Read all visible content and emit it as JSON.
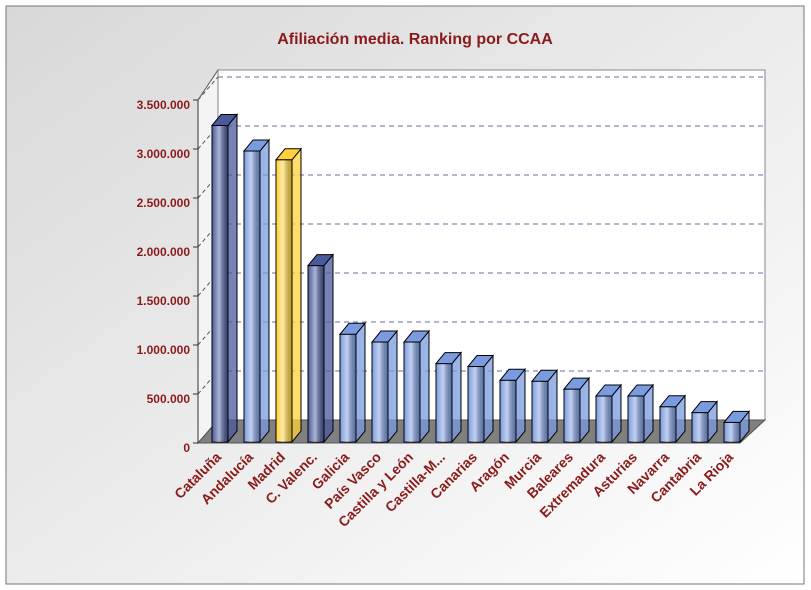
{
  "chart_data": {
    "type": "bar3d",
    "title": "Afiliación media. Ranking por CCAA",
    "categories": [
      "Cataluña",
      "Andalucía",
      "Madrid",
      "C. Valenc.",
      "Galicia",
      "País Vasco",
      "Castilla y León",
      "Castilla-M...",
      "Canarias",
      "Aragón",
      "Murcia",
      "Baleares",
      "Extremadura",
      "Asturias",
      "Navarra",
      "Cantabria",
      "La Rioja"
    ],
    "values": [
      3230000,
      2970000,
      2880000,
      1800000,
      1100000,
      1020000,
      1020000,
      800000,
      770000,
      630000,
      620000,
      540000,
      470000,
      470000,
      360000,
      300000,
      200000
    ],
    "colors": [
      "#4a5a9c",
      "#7a9be0",
      "#ffd23a",
      "#4a5a9c",
      "#7a9be0",
      "#7a9be0",
      "#7a9be0",
      "#7a9be0",
      "#7a9be0",
      "#7a9be0",
      "#7a9be0",
      "#7a9be0",
      "#7a9be0",
      "#7a9be0",
      "#7a9be0",
      "#7a9be0",
      "#7a9be0"
    ],
    "ylim": [
      0,
      3500000
    ],
    "yticks": [
      {
        "value": 0,
        "label": "0"
      },
      {
        "value": 500000,
        "label": "500.000"
      },
      {
        "value": 1000000,
        "label": "1.000.000"
      },
      {
        "value": 1500000,
        "label": "1.500.000"
      },
      {
        "value": 2000000,
        "label": "2.000.000"
      },
      {
        "value": 2500000,
        "label": "2.500.000"
      },
      {
        "value": 3000000,
        "label": "3.000.000"
      },
      {
        "value": 3500000,
        "label": "3.500.000"
      }
    ],
    "grid": true
  }
}
